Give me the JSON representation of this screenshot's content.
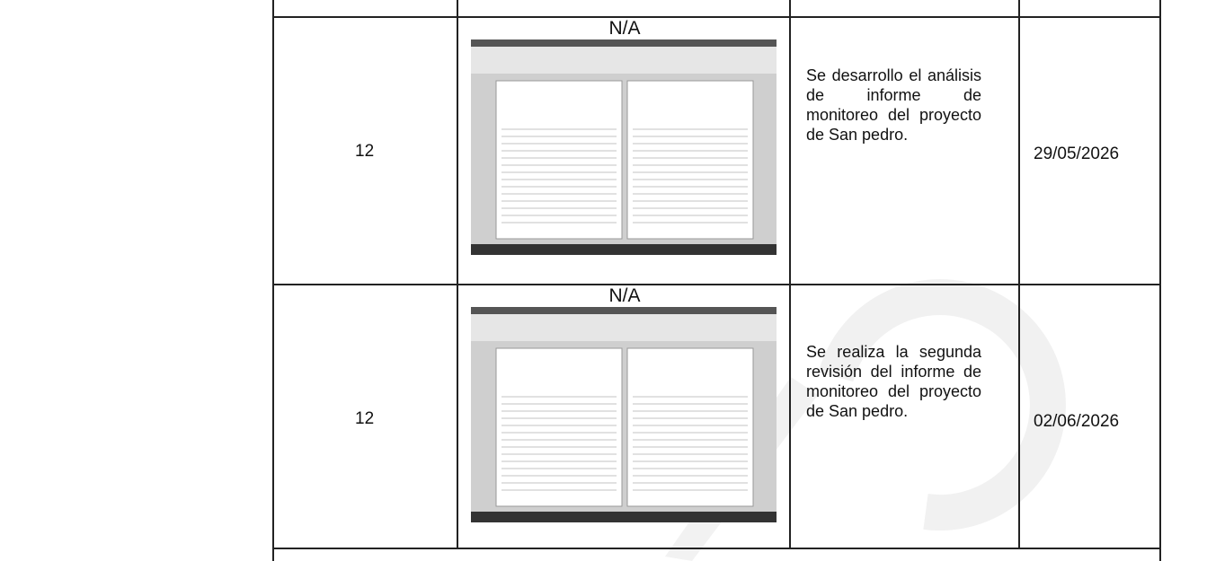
{
  "table": {
    "rows": [
      {
        "number": "12",
        "caption": "N/A",
        "description": "Se desarrollo el análisis de informe de monitoreo del proyecto de San pedro.",
        "date": "29/05/2026"
      },
      {
        "number": "12",
        "caption": "N/A",
        "description": "Se realiza la segunda revisión del informe de monitoreo del proyecto de San pedro.",
        "date": "02/06/2026"
      }
    ]
  }
}
